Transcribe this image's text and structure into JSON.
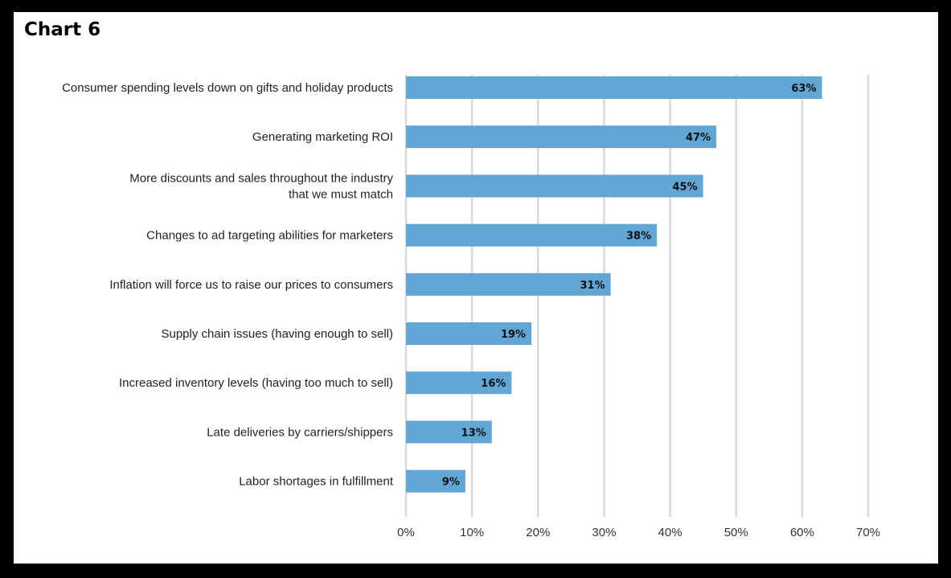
{
  "chart_data": {
    "type": "bar",
    "orientation": "horizontal",
    "title": "Chart 6",
    "categories": [
      "Consumer spending levels down on gifts and holiday products",
      "Generating marketing ROI",
      "More discounts and sales throughout the industry that we must match",
      "Changes to ad targeting abilities for marketers",
      "Inflation will force us to raise our prices to consumers",
      "Supply chain issues (having enough to sell)",
      "Increased inventory levels (having too much to sell)",
      "Late deliveries by carriers/shippers",
      "Labor shortages in fulfillment"
    ],
    "category_lines": [
      [
        "Consumer spending levels down on gifts and holiday products"
      ],
      [
        "Generating marketing ROI"
      ],
      [
        "More discounts and sales throughout the industry",
        "that we must match"
      ],
      [
        "Changes to ad targeting abilities for marketers"
      ],
      [
        "Inflation will force us to raise our prices to consumers"
      ],
      [
        "Supply chain issues (having enough to sell)"
      ],
      [
        "Increased inventory levels (having too much to sell)"
      ],
      [
        "Late deliveries by carriers/shippers"
      ],
      [
        "Labor shortages in fulfillment"
      ]
    ],
    "values": [
      63,
      47,
      45,
      38,
      31,
      19,
      16,
      13,
      9
    ],
    "value_labels": [
      "63%",
      "47%",
      "45%",
      "38%",
      "31%",
      "19%",
      "16%",
      "13%",
      "9%"
    ],
    "xlim": [
      0,
      70
    ],
    "x_ticks": [
      0,
      10,
      20,
      30,
      40,
      50,
      60,
      70
    ],
    "x_tick_labels": [
      "0%",
      "10%",
      "20%",
      "30%",
      "40%",
      "50%",
      "60%",
      "70%"
    ],
    "xlabel": "",
    "ylabel": "",
    "grid": true,
    "legend": "none",
    "colors": {
      "bar": "#62a6d6",
      "grid": "#d9d9d9",
      "frame_background": "#ffffff",
      "page_background": "#000000"
    }
  }
}
